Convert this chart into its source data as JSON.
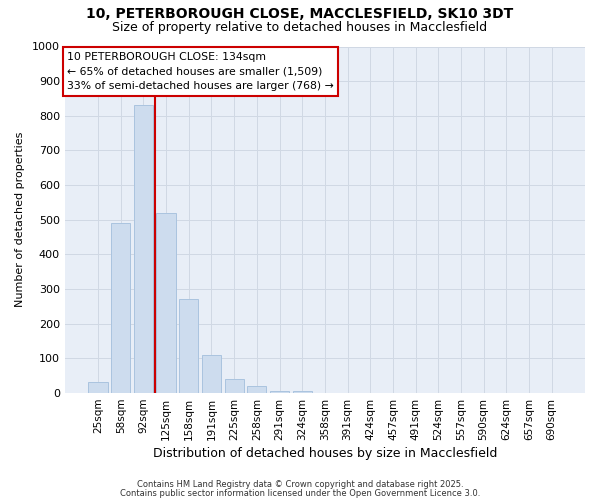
{
  "title1": "10, PETERBOROUGH CLOSE, MACCLESFIELD, SK10 3DT",
  "title2": "Size of property relative to detached houses in Macclesfield",
  "xlabel": "Distribution of detached houses by size in Macclesfield",
  "ylabel": "Number of detached properties",
  "categories": [
    "25sqm",
    "58sqm",
    "92sqm",
    "125sqm",
    "158sqm",
    "191sqm",
    "225sqm",
    "258sqm",
    "291sqm",
    "324sqm",
    "358sqm",
    "391sqm",
    "424sqm",
    "457sqm",
    "491sqm",
    "524sqm",
    "557sqm",
    "590sqm",
    "624sqm",
    "657sqm",
    "690sqm"
  ],
  "values": [
    33,
    490,
    830,
    520,
    270,
    110,
    40,
    20,
    5,
    5,
    0,
    0,
    0,
    0,
    0,
    0,
    0,
    0,
    0,
    0,
    0
  ],
  "bar_color": "#cddcee",
  "bar_edge_color": "#aac4df",
  "redline_x": 2.5,
  "ylim": [
    0,
    1000
  ],
  "yticks": [
    0,
    100,
    200,
    300,
    400,
    500,
    600,
    700,
    800,
    900,
    1000
  ],
  "annotation_title": "10 PETERBOROUGH CLOSE: 134sqm",
  "annotation_line1": "← 65% of detached houses are smaller (1,509)",
  "annotation_line2": "33% of semi-detached houses are larger (768) →",
  "annotation_box_color": "#ffffff",
  "annotation_box_edge": "#cc0000",
  "redline_color": "#cc0000",
  "grid_color": "#d0d8e4",
  "plot_bg_color": "#e8eef7",
  "fig_bg_color": "#ffffff",
  "footer1": "Contains HM Land Registry data © Crown copyright and database right 2025.",
  "footer2": "Contains public sector information licensed under the Open Government Licence 3.0."
}
